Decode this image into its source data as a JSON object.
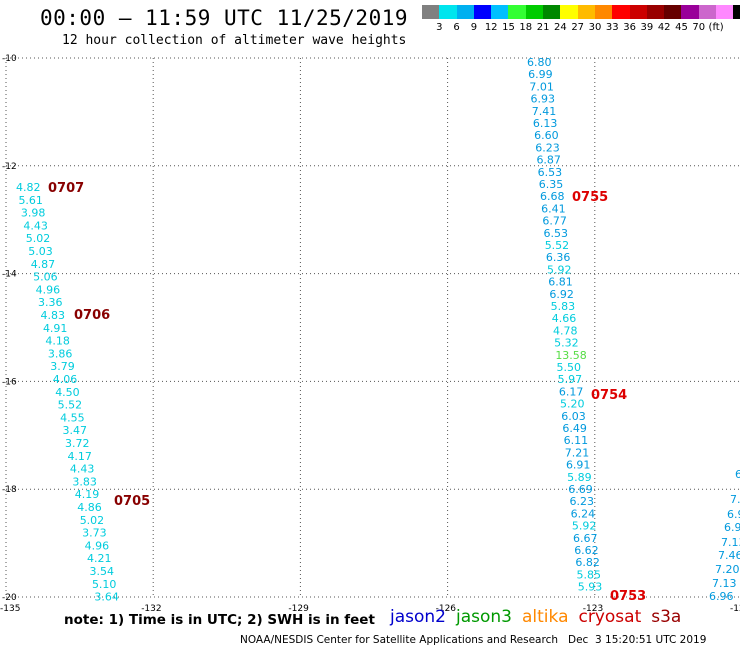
{
  "title": "00:00 – 11:59 UTC 11/25/2019",
  "subtitle": "12 hour collection of altimeter wave heights",
  "color_scale": {
    "colors": [
      "#808080",
      "#00e5ee",
      "#00b0f0",
      "#0000ff",
      "#00bfff",
      "#33ff33",
      "#00cc00",
      "#008800",
      "#ffff00",
      "#ffbb00",
      "#ff8800",
      "#ff0000",
      "#cc0000",
      "#990000",
      "#660000",
      "#990099",
      "#cc66cc",
      "#ff88ff",
      "#000000"
    ],
    "labels": [
      "3",
      "6",
      "9",
      "12",
      "15",
      "18",
      "21",
      "24",
      "27",
      "30",
      "33",
      "36",
      "39",
      "42",
      "45",
      "70",
      "(ft)"
    ]
  },
  "axes": {
    "lat_labels": [
      "-10",
      "-12",
      "-14",
      "-16",
      "-18",
      "-20"
    ],
    "lon_labels": [
      "-135",
      "-132",
      "-129",
      "-126",
      "-123",
      "-12"
    ]
  },
  "tracks": [
    {
      "id": "west",
      "values": [
        "4.82",
        "5.61",
        "3.98",
        "4.43",
        "5.02",
        "5.03",
        "4.87",
        "5.06",
        "4.96",
        "3.36",
        "4.83",
        "4.91",
        "4.18",
        "3.86",
        "3.79",
        "4.06",
        "4.50",
        "5.52",
        "4.55",
        "3.47",
        "3.72",
        "4.17",
        "4.43",
        "3.83",
        "4.19",
        "4.86",
        "5.02",
        "3.73",
        "4.96",
        "4.21",
        "3.54",
        "5.10",
        "3.64"
      ]
    },
    {
      "id": "east",
      "values": [
        "6.80",
        "6.99",
        "7.01",
        "6.93",
        "7.41",
        "6.13",
        "6.60",
        "6.23",
        "6.87",
        "6.53",
        "6.35",
        "6.68",
        "6.41",
        "6.77",
        "6.53",
        "5.52",
        "6.36",
        "5.92",
        "6.81",
        "6.92",
        "5.83",
        "4.66",
        "4.78",
        "5.32",
        "13.58",
        "5.50",
        "5.97",
        "6.17",
        "5.20",
        "6.03",
        "6.49",
        "6.11",
        "7.21",
        "6.91",
        "5.89",
        "6.69",
        "6.23",
        "6.24",
        "5.92",
        "6.67",
        "6.62",
        "6.82",
        "5.85",
        "5.93"
      ]
    },
    {
      "id": "edge",
      "values": [
        "6",
        "7.",
        "6.9",
        "6.9",
        "7.13",
        "7.46",
        "7.20",
        "7.13",
        "6.96"
      ]
    }
  ],
  "time_labels": [
    "0707",
    "0706",
    "0705",
    "0755",
    "0754",
    "0753"
  ],
  "note": "note: 1) Time is in UTC; 2) SWH is in feet",
  "satellites": [
    {
      "name": "jason2",
      "color": "#0000cc"
    },
    {
      "name": "jason3",
      "color": "#009900"
    },
    {
      "name": "altika",
      "color": "#ff8800"
    },
    {
      "name": "cryosat",
      "color": "#cc0000"
    },
    {
      "name": "s3a",
      "color": "#990000"
    }
  ],
  "credit": "NOAA/NESDIS Center for Satellite Applications and Research   Dec  3 15:20:51 UTC 2019",
  "value_colors": {
    "cyan": "#00ccdd",
    "blue": "#0099dd",
    "green": "#55dd44",
    "dark_red": "#880000",
    "red": "#dd0000"
  }
}
